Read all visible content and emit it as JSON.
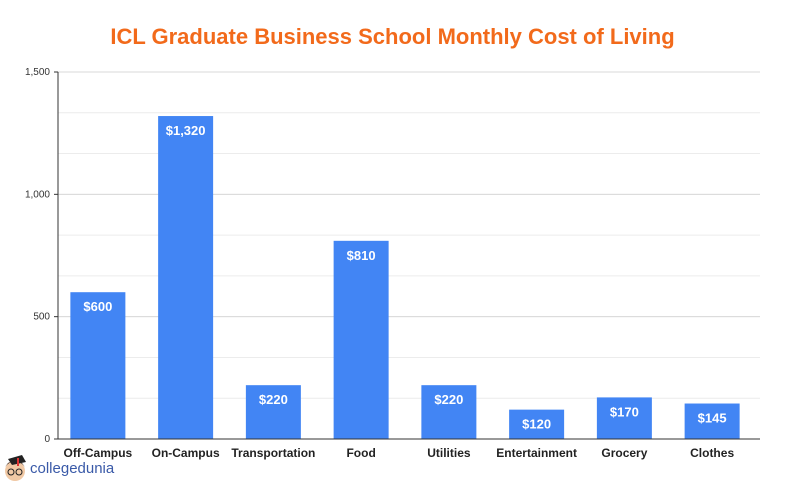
{
  "chart_data": {
    "type": "bar",
    "title": "ICL Graduate Business School Monthly Cost of Living",
    "categories": [
      "Off-Campus",
      "On-Campus",
      "Transportation",
      "Food",
      "Utilities",
      "Entertainment",
      "Grocery",
      "Clothes"
    ],
    "values": [
      600,
      1320,
      220,
      810,
      220,
      120,
      170,
      145
    ],
    "data_labels": [
      "$600",
      "$1,320",
      "$220",
      "$810",
      "$220",
      "$120",
      "$170",
      "$145"
    ],
    "xlabel": "",
    "ylabel": "",
    "ylim": [
      0,
      1500
    ],
    "yticks": [
      0,
      500,
      1000,
      1500
    ],
    "ytick_labels": [
      "0",
      "500",
      "1,000",
      "1,500"
    ],
    "grid": true,
    "legend": "none",
    "colors": {
      "bar": "#4285f4",
      "title": "#f26a1b",
      "label": "#ffffff"
    }
  },
  "watermark": {
    "text": "collegedunia"
  }
}
